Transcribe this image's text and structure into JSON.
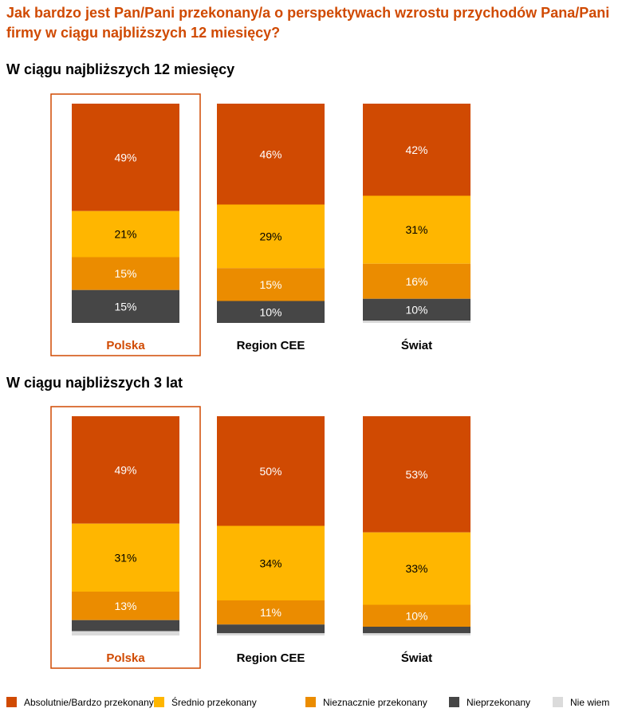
{
  "title": "Jak bardzo jest Pan/Pani przekonany/a o perspektywach wzrostu przychodów Pana/Pani firmy w ciągu najbliższych 12 miesięcy?",
  "colors": {
    "absolutnie": "#d04a02",
    "srednio": "#ffb600",
    "nieznacznie": "#eb8c00",
    "nieprzekonany": "#464646",
    "nie_wiem": "#dbdbdb",
    "highlight": "#d04a02"
  },
  "chart_data": [
    {
      "type": "bar",
      "stacked": true,
      "title": "W ciągu najbliższych 12 miesięcy",
      "categories": [
        "Polska",
        "Region CEE",
        "Świat"
      ],
      "highlight": "Polska",
      "ylim": [
        0,
        100
      ],
      "series": [
        {
          "name": "Absolutnie/Bardzo przekonany",
          "values": [
            49,
            46,
            42
          ],
          "labels": [
            "49%",
            "46%",
            "42%"
          ]
        },
        {
          "name": "Średnio przekonany",
          "values": [
            21,
            29,
            31
          ],
          "labels": [
            "21%",
            "29%",
            "31%"
          ]
        },
        {
          "name": "Nieznacznie przekonany",
          "values": [
            15,
            15,
            16
          ],
          "labels": [
            "15%",
            "15%",
            "16%"
          ]
        },
        {
          "name": "Nieprzekonany",
          "values": [
            15,
            10,
            10
          ],
          "labels": [
            "15%",
            "10%",
            "10%"
          ]
        },
        {
          "name": "Nie wiem",
          "values": [
            0,
            0,
            1
          ],
          "labels": [
            "",
            "",
            ""
          ]
        }
      ]
    },
    {
      "type": "bar",
      "stacked": true,
      "title": "W ciągu najbliższych 3 lat",
      "categories": [
        "Polska",
        "Region CEE",
        "Świat"
      ],
      "highlight": "Polska",
      "ylim": [
        0,
        100
      ],
      "series": [
        {
          "name": "Absolutnie/Bardzo przekonany",
          "values": [
            49,
            50,
            53
          ],
          "labels": [
            "49%",
            "50%",
            "53%"
          ]
        },
        {
          "name": "Średnio przekonany",
          "values": [
            31,
            34,
            33
          ],
          "labels": [
            "31%",
            "34%",
            "33%"
          ]
        },
        {
          "name": "Nieznacznie przekonany",
          "values": [
            13,
            11,
            10
          ],
          "labels": [
            "13%",
            "11%",
            "10%"
          ]
        },
        {
          "name": "Nieprzekonany",
          "values": [
            5,
            4,
            3
          ],
          "labels": [
            "",
            "",
            ""
          ]
        },
        {
          "name": "Nie wiem",
          "values": [
            2,
            1,
            1
          ],
          "labels": [
            "",
            "",
            ""
          ]
        }
      ]
    }
  ],
  "legend": [
    {
      "label": "Absolutnie/Bardzo przekonany",
      "color_key": "absolutnie"
    },
    {
      "label": "Średnio przekonany",
      "color_key": "srednio"
    },
    {
      "label": "Nieznacznie przekonany",
      "color_key": "nieznacznie"
    },
    {
      "label": "Nieprzekonany",
      "color_key": "nieprzekonany"
    },
    {
      "label": "Nie wiem",
      "color_key": "nie_wiem"
    }
  ]
}
